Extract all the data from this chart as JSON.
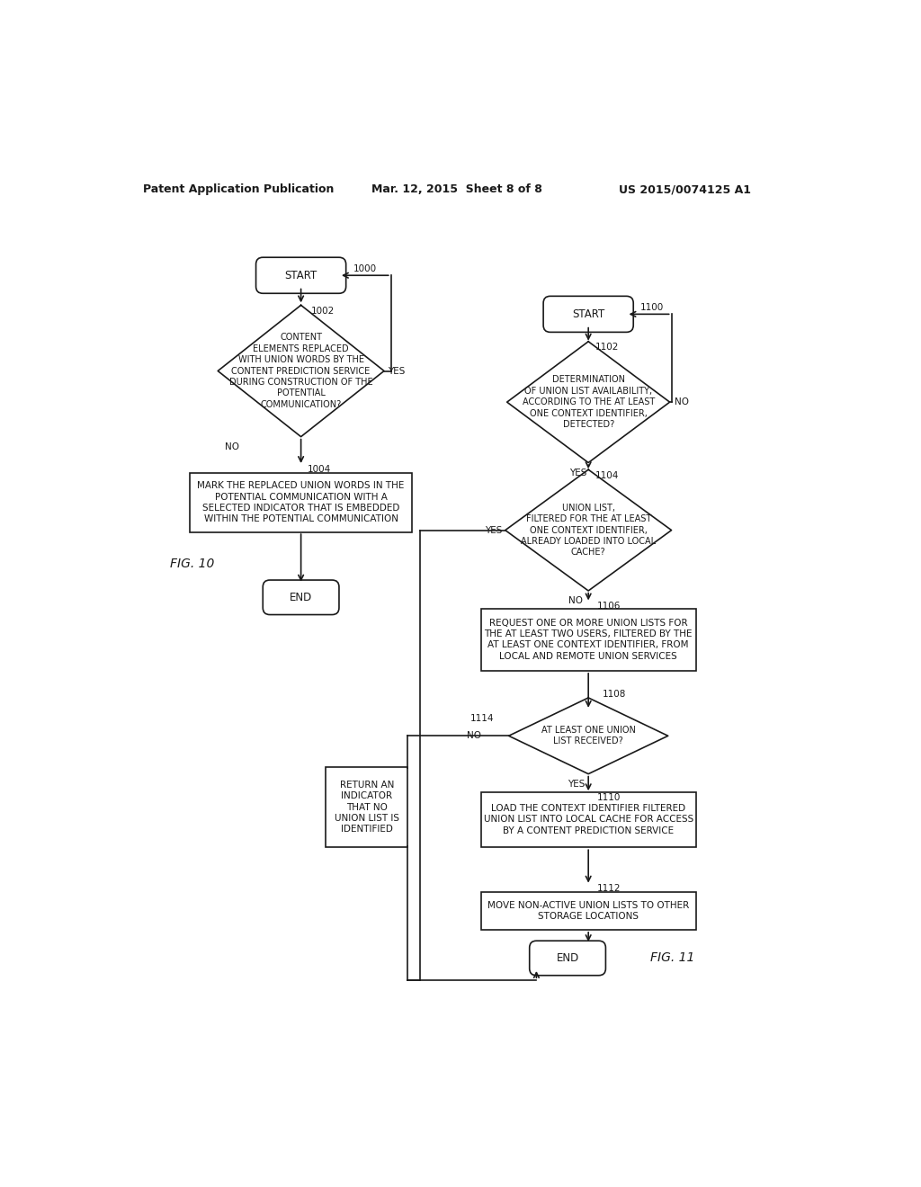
{
  "title_left": "Patent Application Publication",
  "title_mid": "Mar. 12, 2015  Sheet 8 of 8",
  "title_right": "US 2015/0074125 A1",
  "bg_color": "#ffffff",
  "line_color": "#1a1a1a",
  "text_color": "#1a1a1a",
  "fig_width": 10.24,
  "fig_height": 13.2
}
